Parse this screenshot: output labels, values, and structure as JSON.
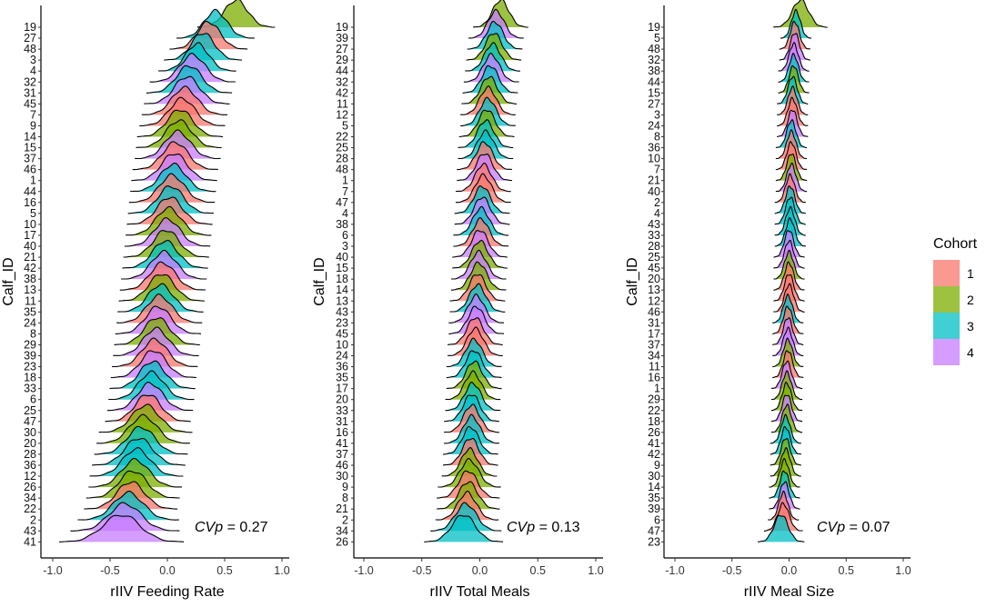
{
  "chart_data": [
    {
      "type": "ridgeline",
      "id": "feeding",
      "xlabel": "rIIV Feeding Rate",
      "ylabel": "Calf_ID",
      "xlim": [
        -1.0,
        1.0
      ],
      "xticks": [
        "-1.0",
        "-0.5",
        "0.0",
        "0.5",
        "1.0"
      ],
      "annotation": {
        "label": "CVp",
        "value": "= 0.27"
      },
      "calves": [
        "19",
        "27",
        "48",
        "3",
        "4",
        "32",
        "31",
        "45",
        "7",
        "9",
        "14",
        "15",
        "37",
        "46",
        "1",
        "44",
        "16",
        "5",
        "10",
        "17",
        "40",
        "21",
        "42",
        "38",
        "13",
        "11",
        "35",
        "24",
        "8",
        "29",
        "39",
        "23",
        "18",
        "33",
        "6",
        "25",
        "47",
        "30",
        "20",
        "28",
        "36",
        "12",
        "26",
        "34",
        "22",
        "2",
        "43",
        "41"
      ],
      "cohorts": [
        2,
        3,
        1,
        3,
        3,
        4,
        3,
        4,
        1,
        1,
        2,
        2,
        4,
        1,
        4,
        3,
        1,
        3,
        1,
        2,
        4,
        2,
        3,
        4,
        1,
        2,
        3,
        1,
        4,
        2,
        4,
        1,
        4,
        3,
        3,
        4,
        1,
        2,
        2,
        3,
        3,
        3,
        2,
        2,
        1,
        3,
        4,
        4
      ],
      "means": [
        0.6,
        0.42,
        0.36,
        0.31,
        0.26,
        0.22,
        0.19,
        0.17,
        0.15,
        0.13,
        0.11,
        0.1,
        0.09,
        0.07,
        0.06,
        0.05,
        0.04,
        0.03,
        0.02,
        0.01,
        0.0,
        -0.01,
        -0.02,
        -0.03,
        -0.04,
        -0.05,
        -0.06,
        -0.07,
        -0.08,
        -0.09,
        -0.1,
        -0.11,
        -0.12,
        -0.13,
        -0.14,
        -0.15,
        -0.17,
        -0.19,
        -0.21,
        -0.23,
        -0.25,
        -0.27,
        -0.28,
        -0.3,
        -0.32,
        -0.34,
        -0.37,
        -0.4
      ],
      "sds": [
        0.1,
        0.1,
        0.1,
        0.1,
        0.1,
        0.11,
        0.11,
        0.11,
        0.11,
        0.11,
        0.11,
        0.11,
        0.11,
        0.11,
        0.11,
        0.11,
        0.11,
        0.11,
        0.11,
        0.11,
        0.11,
        0.11,
        0.11,
        0.11,
        0.11,
        0.11,
        0.11,
        0.11,
        0.11,
        0.11,
        0.11,
        0.11,
        0.11,
        0.11,
        0.11,
        0.11,
        0.11,
        0.12,
        0.12,
        0.12,
        0.12,
        0.12,
        0.12,
        0.12,
        0.12,
        0.13,
        0.14,
        0.16
      ]
    },
    {
      "type": "ridgeline",
      "id": "meals",
      "xlabel": "rIIV Total Meals",
      "ylabel": "Calf_ID",
      "xlim": [
        -1.0,
        1.0
      ],
      "xticks": [
        "-1.0",
        "-0.5",
        "0.0",
        "0.5",
        "1.0"
      ],
      "annotation": {
        "label": "CVp",
        "value": "= 0.13"
      },
      "calves": [
        "19",
        "39",
        "27",
        "29",
        "44",
        "32",
        "42",
        "11",
        "12",
        "5",
        "22",
        "25",
        "28",
        "48",
        "1",
        "7",
        "47",
        "4",
        "38",
        "6",
        "3",
        "40",
        "15",
        "18",
        "14",
        "13",
        "43",
        "23",
        "45",
        "10",
        "24",
        "36",
        "35",
        "17",
        "20",
        "33",
        "31",
        "16",
        "41",
        "37",
        "46",
        "30",
        "9",
        "8",
        "21",
        "2",
        "34",
        "26"
      ],
      "cohorts": [
        2,
        4,
        3,
        2,
        3,
        4,
        3,
        2,
        1,
        3,
        2,
        3,
        3,
        1,
        4,
        1,
        1,
        3,
        4,
        3,
        1,
        4,
        2,
        4,
        2,
        1,
        3,
        4,
        4,
        1,
        1,
        3,
        3,
        2,
        2,
        3,
        3,
        1,
        3,
        3,
        1,
        2,
        2,
        1,
        2,
        1,
        3,
        3
      ],
      "means": [
        0.18,
        0.14,
        0.13,
        0.12,
        0.11,
        0.1,
        0.09,
        0.08,
        0.07,
        0.07,
        0.06,
        0.05,
        0.05,
        0.04,
        0.04,
        0.03,
        0.03,
        0.02,
        0.02,
        0.01,
        0.01,
        0.0,
        0.0,
        -0.01,
        -0.01,
        -0.02,
        -0.02,
        -0.03,
        -0.03,
        -0.04,
        -0.04,
        -0.05,
        -0.05,
        -0.05,
        -0.06,
        -0.06,
        -0.07,
        -0.07,
        -0.07,
        -0.08,
        -0.08,
        -0.09,
        -0.09,
        -0.1,
        -0.1,
        -0.11,
        -0.12,
        -0.14
      ],
      "sds": [
        0.07,
        0.07,
        0.07,
        0.07,
        0.07,
        0.07,
        0.07,
        0.07,
        0.07,
        0.07,
        0.07,
        0.07,
        0.07,
        0.07,
        0.07,
        0.07,
        0.07,
        0.07,
        0.07,
        0.07,
        0.07,
        0.07,
        0.07,
        0.07,
        0.07,
        0.07,
        0.07,
        0.07,
        0.07,
        0.07,
        0.07,
        0.07,
        0.07,
        0.07,
        0.07,
        0.07,
        0.07,
        0.07,
        0.07,
        0.07,
        0.07,
        0.07,
        0.08,
        0.08,
        0.08,
        0.08,
        0.09,
        0.1
      ]
    },
    {
      "type": "ridgeline",
      "id": "size",
      "xlabel": "rIIV Meal Size",
      "ylabel": "Calf_ID",
      "xlim": [
        -1.0,
        1.0
      ],
      "xticks": [
        "-1.0",
        "-0.5",
        "0.0",
        "0.5",
        "1.0"
      ],
      "annotation": {
        "label": "CVp",
        "value": "= 0.07"
      },
      "calves": [
        "19",
        "5",
        "48",
        "32",
        "38",
        "44",
        "15",
        "27",
        "3",
        "24",
        "8",
        "36",
        "10",
        "7",
        "21",
        "40",
        "2",
        "4",
        "43",
        "33",
        "28",
        "25",
        "45",
        "20",
        "13",
        "12",
        "46",
        "31",
        "17",
        "37",
        "34",
        "11",
        "16",
        "1",
        "29",
        "22",
        "18",
        "26",
        "41",
        "42",
        "9",
        "30",
        "14",
        "35",
        "39",
        "6",
        "47",
        "23"
      ],
      "cohorts": [
        2,
        3,
        1,
        4,
        4,
        3,
        2,
        3,
        1,
        1,
        4,
        3,
        1,
        1,
        2,
        4,
        1,
        3,
        3,
        3,
        3,
        4,
        4,
        2,
        1,
        1,
        1,
        3,
        1,
        4,
        4,
        2,
        1,
        4,
        2,
        2,
        4,
        2,
        3,
        3,
        2,
        2,
        2,
        3,
        4,
        1,
        1,
        3
      ],
      "means": [
        0.1,
        0.06,
        0.05,
        0.05,
        0.04,
        0.04,
        0.04,
        0.03,
        0.03,
        0.03,
        0.03,
        0.02,
        0.02,
        0.02,
        0.02,
        0.02,
        0.01,
        0.01,
        0.01,
        0.01,
        0.01,
        0.0,
        0.0,
        0.0,
        0.0,
        0.0,
        0.0,
        -0.01,
        -0.01,
        -0.01,
        -0.01,
        -0.01,
        -0.01,
        -0.02,
        -0.02,
        -0.02,
        -0.02,
        -0.02,
        -0.03,
        -0.03,
        -0.03,
        -0.03,
        -0.04,
        -0.04,
        -0.04,
        -0.05,
        -0.05,
        -0.07
      ],
      "sds": [
        0.07,
        0.04,
        0.04,
        0.04,
        0.04,
        0.04,
        0.04,
        0.04,
        0.04,
        0.04,
        0.04,
        0.04,
        0.04,
        0.04,
        0.04,
        0.04,
        0.04,
        0.04,
        0.04,
        0.04,
        0.04,
        0.04,
        0.04,
        0.04,
        0.04,
        0.04,
        0.04,
        0.04,
        0.04,
        0.04,
        0.04,
        0.04,
        0.04,
        0.04,
        0.04,
        0.04,
        0.04,
        0.04,
        0.04,
        0.04,
        0.04,
        0.04,
        0.04,
        0.04,
        0.04,
        0.04,
        0.05,
        0.06
      ]
    }
  ],
  "legend": {
    "title": "Cohort",
    "position": "right",
    "items": [
      {
        "label": "1",
        "color": "#F8766D"
      },
      {
        "label": "2",
        "color": "#7CAE00"
      },
      {
        "label": "3",
        "color": "#00BFC4"
      },
      {
        "label": "4",
        "color": "#C77CFF"
      }
    ]
  }
}
